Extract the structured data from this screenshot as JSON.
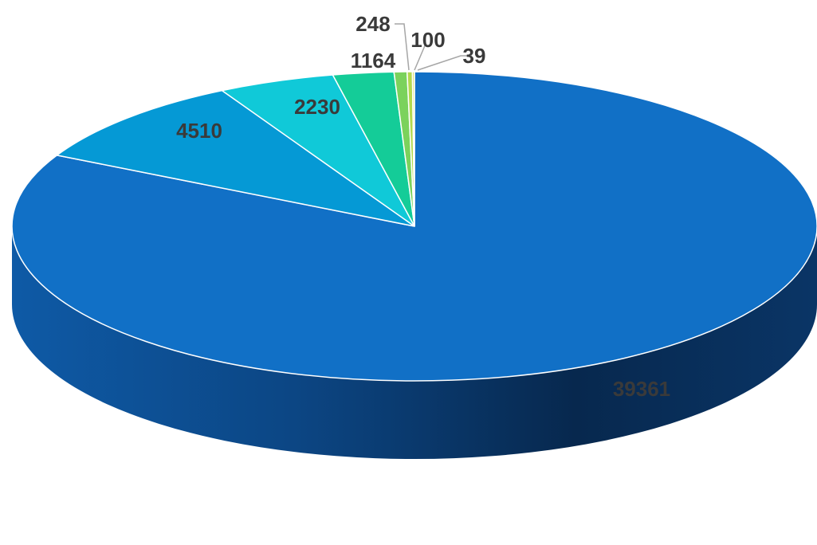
{
  "chart_data": {
    "type": "pie",
    "style": "3d",
    "values": [
      39361,
      4510,
      2230,
      1164,
      248,
      100,
      39
    ],
    "labels": [
      "39361",
      "4510",
      "2230",
      "1164",
      "248",
      "100",
      "39"
    ],
    "colors": [
      "#1170C6",
      "#0599D5",
      "#10C9D8",
      "#14CC98",
      "#7BD25C",
      "#B3D94E",
      "#DDE06A"
    ],
    "side_color": "#0A3F78",
    "legend": "none",
    "title": ""
  }
}
